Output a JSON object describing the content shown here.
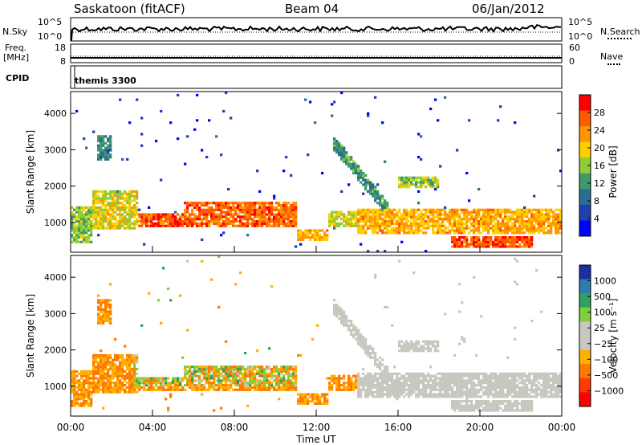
{
  "header": {
    "station": "Saskatoon (fitACF)",
    "beam": "Beam 04",
    "date": "06/Jan/2012"
  },
  "top_panels": {
    "nsky_label": "N.Sky",
    "nsky_ticks": [
      "10^5",
      "10^0"
    ],
    "nsearch_label": "N.Search",
    "nsearch_ticks": [
      "10^5",
      "10^0"
    ],
    "freq_label_1": "Freq.",
    "freq_label_2": "[MHz]",
    "freq_ticks": [
      "18",
      "8"
    ],
    "nave_label": "Nave",
    "nave_ticks": [
      "60",
      "0"
    ],
    "cpid_label": "CPID",
    "cpid_value": "themis 3300"
  },
  "chart_data": [
    {
      "type": "heatmap",
      "name": "power",
      "ylabel": "Slant Range [km]",
      "ylim": [
        180,
        4600
      ],
      "yticks": [
        "1000",
        "2000",
        "3000",
        "4000"
      ],
      "xlim": [
        0,
        24
      ],
      "colorbar": {
        "label": "Power [dB]",
        "ticks": [
          "28",
          "24",
          "20",
          "16",
          "12",
          "8",
          "4"
        ],
        "colors": [
          "#ff0000",
          "#ff5a00",
          "#ff9500",
          "#ffd000",
          "#8fcc38",
          "#3d9a6b",
          "#2a6f91",
          "#2040b0",
          "#0000ff"
        ]
      }
    },
    {
      "type": "heatmap",
      "name": "velocity",
      "ylabel": "Slant Range [km]",
      "ylim": [
        180,
        4600
      ],
      "yticks": [
        "1000",
        "2000",
        "3000",
        "4000"
      ],
      "xlim": [
        0,
        24
      ],
      "xlabel": "Time UT",
      "xticks": [
        "00:00",
        "04:00",
        "08:00",
        "12:00",
        "16:00",
        "20:00",
        "00:00"
      ],
      "colorbar": {
        "label": "Velocity [m s⁻¹]",
        "ticks": [
          "1000",
          "500",
          "100",
          "25",
          "−25",
          "−100",
          "−500",
          "−1000"
        ],
        "colors": [
          "#1a2fa0",
          "#2d7db0",
          "#33a060",
          "#7fd03a",
          "#c8c8c0",
          "#c8c8c0",
          "#ffb000",
          "#ff7a00",
          "#ff3a00",
          "#ff0000"
        ]
      }
    }
  ]
}
